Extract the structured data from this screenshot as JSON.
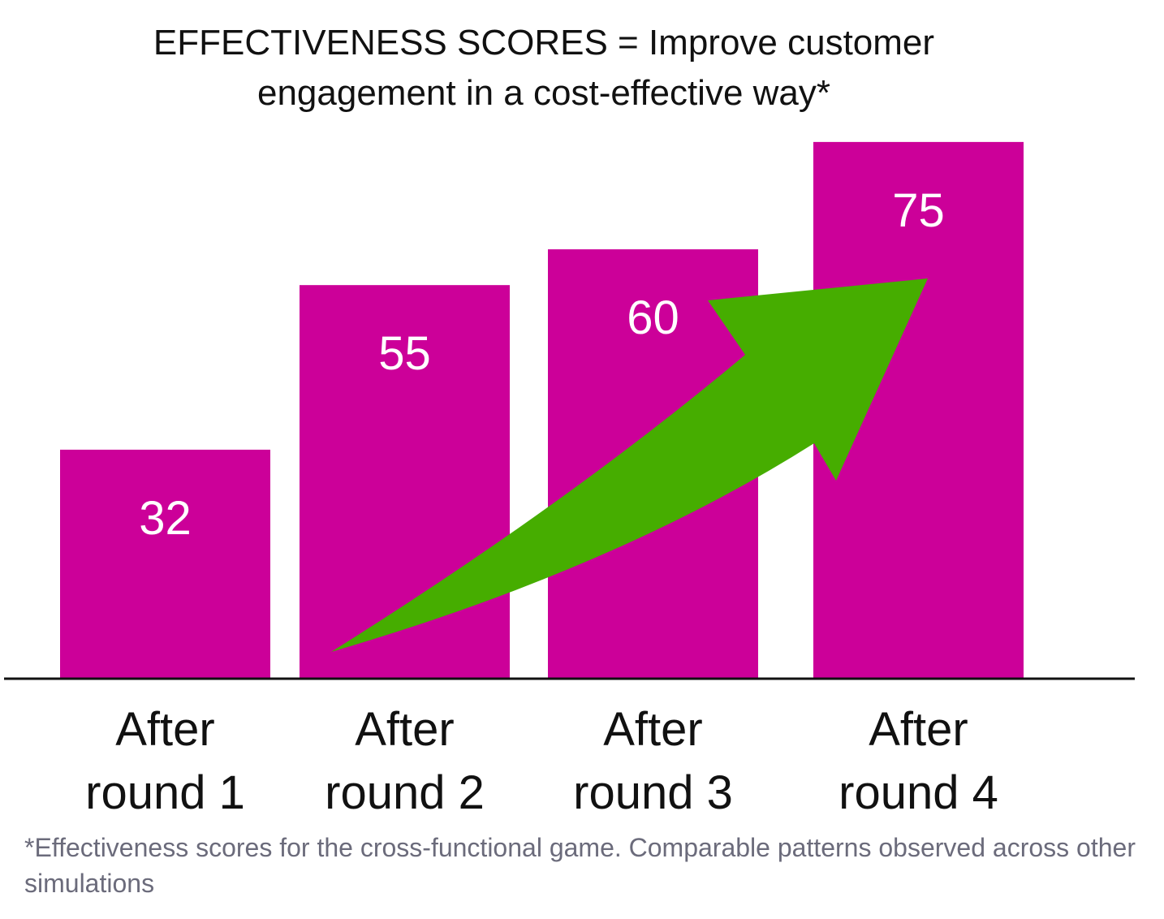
{
  "chart_data": {
    "type": "bar",
    "title": "EFFECTIVENESS SCORES = Improve customer engagement in a cost-effective way*",
    "categories": [
      "After round 1",
      "After round 2",
      "After round 3",
      "After round 4"
    ],
    "values": [
      32,
      55,
      60,
      75
    ],
    "color": "#cc0099",
    "footnote": "*Effectiveness scores for the cross-functional game. Comparable patterns observed across other simulations"
  }
}
